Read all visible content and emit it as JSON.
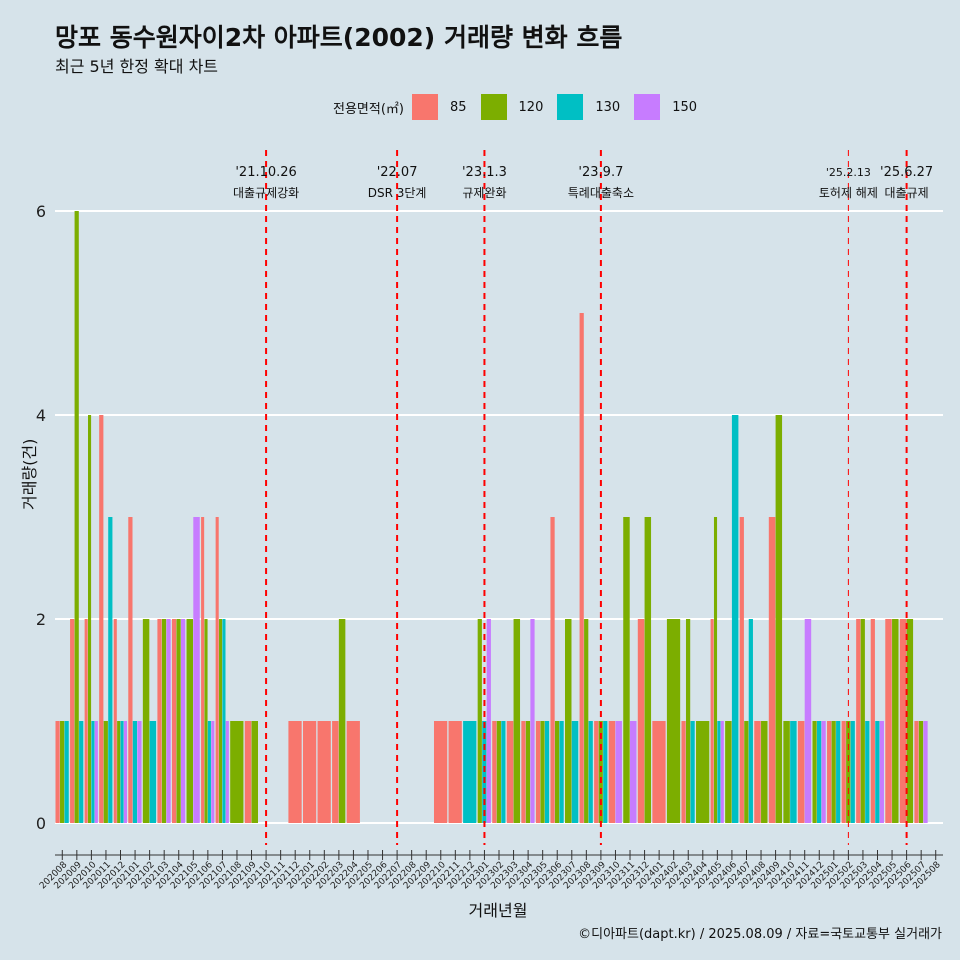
{
  "chart_data": {
    "type": "bar",
    "title": "망포 동수원자이2차 아파트(2002) 거래량 변화 흐름",
    "subtitle": "최근 5년 한정 확대 차트",
    "xlabel": "거래년월",
    "ylabel": "거래량(건)",
    "ylim": [
      0,
      6
    ],
    "yticks": [
      0,
      2,
      4,
      6
    ],
    "legend": {
      "title": "전용면적(㎡)",
      "position": "top",
      "entries": [
        {
          "name": "85",
          "color": "#F8766D"
        },
        {
          "name": "120",
          "color": "#7CAE00"
        },
        {
          "name": "130",
          "color": "#00BFC4"
        },
        {
          "name": "150",
          "color": "#C77CFF"
        }
      ]
    },
    "categories": [
      "202008",
      "202009",
      "202010",
      "202011",
      "202012",
      "202101",
      "202102",
      "202103",
      "202104",
      "202105",
      "202106",
      "202107",
      "202108",
      "202109",
      "202110",
      "202111",
      "202112",
      "202201",
      "202202",
      "202203",
      "202204",
      "202205",
      "202206",
      "202207",
      "202208",
      "202209",
      "202210",
      "202211",
      "202212",
      "202301",
      "202302",
      "202303",
      "202304",
      "202305",
      "202306",
      "202307",
      "202308",
      "202309",
      "202310",
      "202311",
      "202312",
      "202401",
      "202402",
      "202403",
      "202404",
      "202405",
      "202406",
      "202407",
      "202408",
      "202409",
      "202410",
      "202411",
      "202412",
      "202501",
      "202502",
      "202503",
      "202504",
      "202505",
      "202506",
      "202507",
      "202508"
    ],
    "series": [
      {
        "name": "85",
        "color": "#F8766D",
        "values": [
          1,
          2,
          2,
          4,
          2,
          3,
          0,
          2,
          2,
          0,
          3,
          3,
          0,
          1,
          0,
          0,
          1,
          1,
          1,
          1,
          1,
          0,
          0,
          0,
          0,
          0,
          1,
          1,
          0,
          0,
          1,
          1,
          1,
          1,
          3,
          0,
          5,
          1,
          1,
          0,
          2,
          1,
          0,
          1,
          0,
          2,
          0,
          3,
          1,
          3,
          0,
          1,
          0,
          1,
          1,
          2,
          2,
          2,
          2,
          1,
          0
        ]
      },
      {
        "name": "120",
        "color": "#7CAE00",
        "values": [
          1,
          6,
          4,
          1,
          1,
          0,
          2,
          2,
          2,
          2,
          2,
          2,
          1,
          1,
          0,
          0,
          0,
          0,
          0,
          2,
          0,
          0,
          0,
          0,
          0,
          0,
          0,
          0,
          0,
          2,
          1,
          2,
          1,
          1,
          1,
          2,
          2,
          1,
          0,
          3,
          3,
          0,
          2,
          2,
          1,
          3,
          1,
          1,
          1,
          4,
          1,
          0,
          1,
          1,
          1,
          2,
          0,
          2,
          2,
          1,
          0
        ]
      },
      {
        "name": "130",
        "color": "#00BFC4",
        "values": [
          1,
          1,
          1,
          3,
          1,
          1,
          1,
          0,
          0,
          0,
          1,
          2,
          0,
          0,
          0,
          0,
          0,
          0,
          0,
          0,
          0,
          0,
          0,
          0,
          0,
          0,
          0,
          0,
          1,
          1,
          1,
          0,
          0,
          1,
          1,
          1,
          1,
          1,
          0,
          0,
          0,
          0,
          0,
          1,
          0,
          1,
          4,
          2,
          0,
          0,
          1,
          0,
          1,
          1,
          1,
          1,
          1,
          0,
          0,
          0,
          0
        ]
      },
      {
        "name": "150",
        "color": "#C77CFF",
        "values": [
          0,
          0,
          1,
          0,
          1,
          1,
          0,
          2,
          2,
          3,
          1,
          1,
          0,
          0,
          0,
          0,
          0,
          0,
          0,
          0,
          0,
          0,
          0,
          0,
          0,
          0,
          0,
          0,
          0,
          2,
          0,
          0,
          2,
          0,
          0,
          0,
          0,
          0,
          1,
          1,
          0,
          0,
          0,
          0,
          0,
          1,
          0,
          0,
          0,
          0,
          0,
          2,
          1,
          0,
          0,
          0,
          1,
          0,
          0,
          1,
          0
        ]
      }
    ],
    "annotations": [
      {
        "date": "'21.10.26",
        "label": "대출규제강화",
        "x_index": 14.5,
        "style": "thick"
      },
      {
        "date": "'22.07",
        "label": "DSR 3단계",
        "x_index": 23.5,
        "style": "thick"
      },
      {
        "date": "'23.1.3",
        "label": "규제완화",
        "x_index": 29.5,
        "style": "thick"
      },
      {
        "date": "'23.9.7",
        "label": "특례대출축소",
        "x_index": 37.5,
        "style": "thick"
      },
      {
        "date": "'25.2.13",
        "label": "토허제 해제",
        "x_index": 54.5,
        "style": "thin"
      },
      {
        "date": "'25.6.27",
        "label": "대출규제",
        "x_index": 58.5,
        "style": "thick"
      }
    ]
  },
  "caption": "©디아파트(dapt.kr) / 2025.08.09 / 자료=국토교통부 실거래가"
}
